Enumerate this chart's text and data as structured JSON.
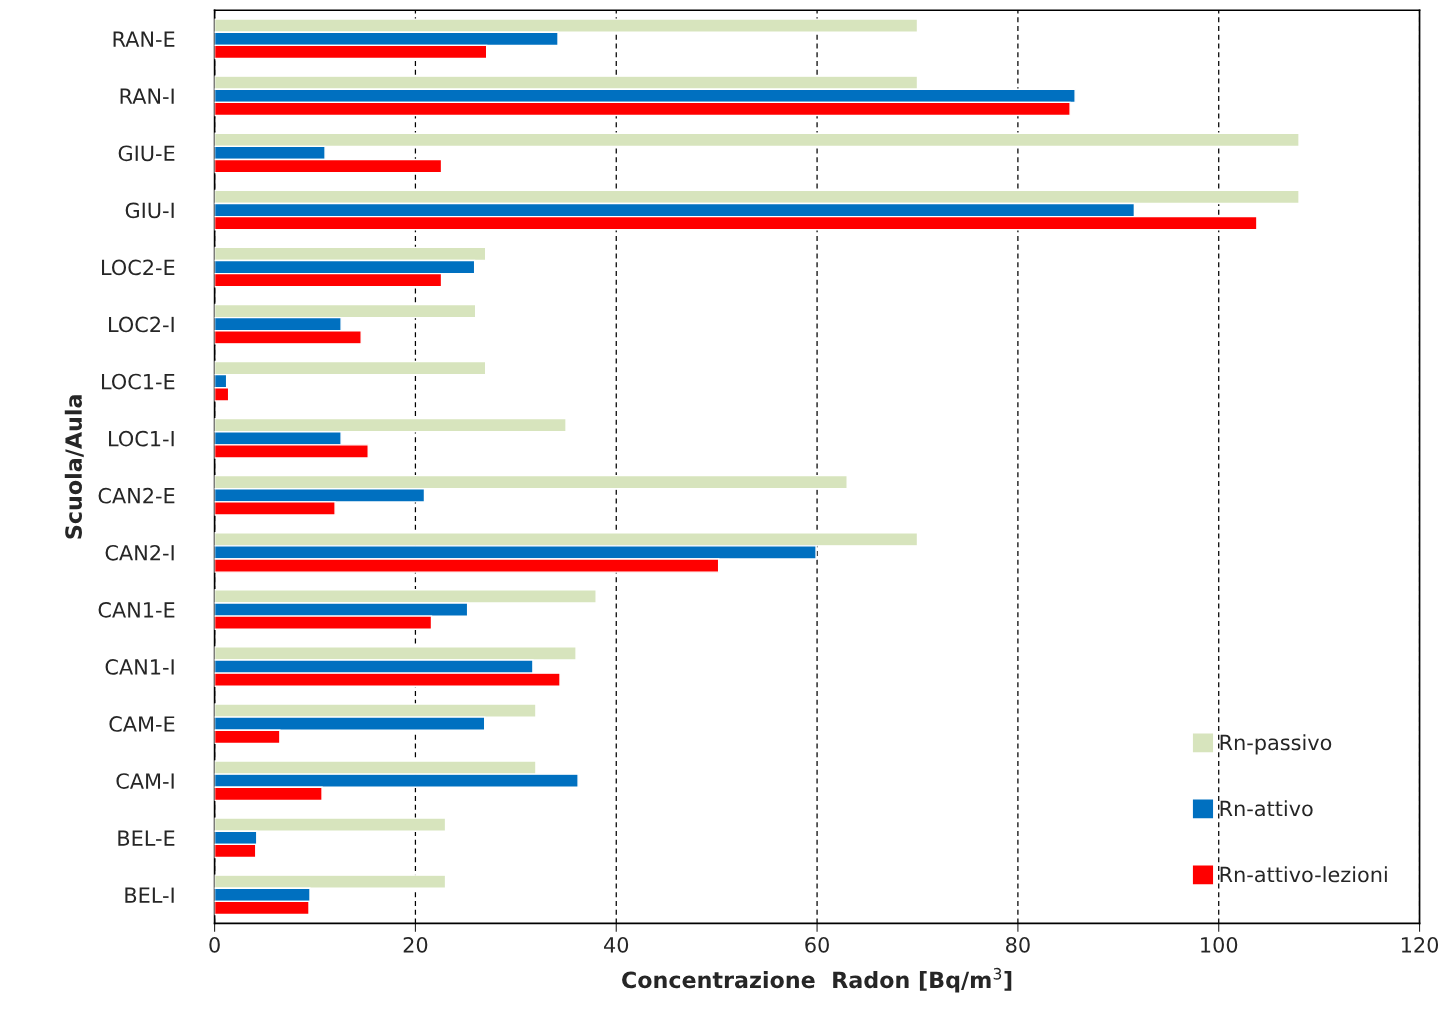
{
  "chart_data": {
    "type": "bar",
    "orientation": "horizontal",
    "xlabel": "Concentrazione  Radon [Bq/m$^{3}$]",
    "ylabel": "Scuola/Aula",
    "categories": [
      "RAN-E",
      "RAN-I",
      "GIU-E",
      "GIU-I",
      "LOC2-E",
      "LOC2-I",
      "LOC1-E",
      "LOC1-I",
      "CAN2-E",
      "CAN2-I",
      "CAN1-E",
      "CAN1-I",
      "CAM-E",
      "CAM-I",
      "BEL-E",
      "BEL-I"
    ],
    "series": [
      {
        "name": "Rn-passivo",
        "color": "#d7e4bd",
        "values": [
          70,
          70,
          108,
          108,
          27,
          26,
          27,
          35,
          63,
          70,
          38,
          36,
          32,
          32,
          23,
          23
        ]
      },
      {
        "name": "Rn-attivo",
        "color": "#0070c0",
        "values": [
          34.2,
          85.7,
          11.0,
          91.6,
          25.9,
          12.6,
          1.2,
          12.6,
          20.9,
          59.9,
          25.2,
          31.7,
          26.9,
          36.2,
          4.2,
          9.5
        ]
      },
      {
        "name": "Rn-attivo-lezioni",
        "color": "#ff0000",
        "values": [
          27.1,
          85.2,
          22.6,
          103.8,
          22.6,
          14.6,
          1.4,
          15.3,
          12.0,
          50.2,
          21.6,
          34.4,
          6.5,
          10.7,
          4.1,
          9.4
        ]
      }
    ],
    "xlim": [
      0,
      120
    ],
    "xticks": [
      0,
      20,
      40,
      60,
      80,
      100,
      120
    ],
    "grid": "x",
    "legend": "bottom right"
  }
}
